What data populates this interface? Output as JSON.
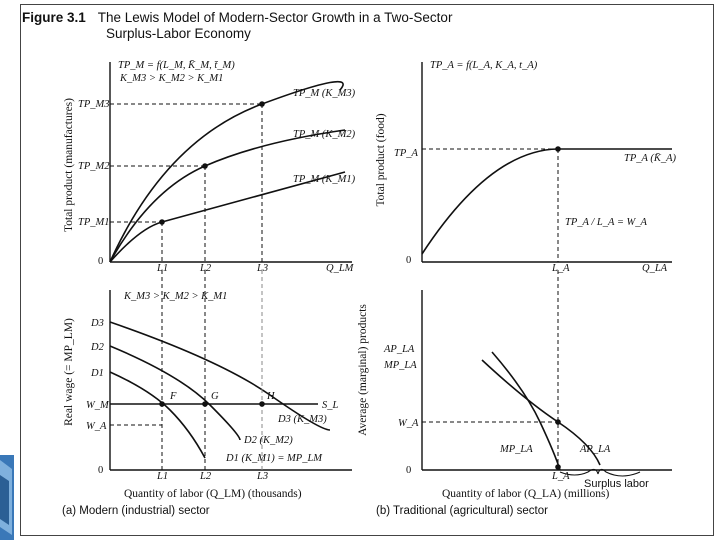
{
  "figure": {
    "number": "Figure 3.1",
    "title_line1": "The Lewis Model of Modern-Sector Growth in a Two-Sector",
    "title_line2": "Surplus-Labor Economy"
  },
  "panel_a_top": {
    "function": "TP_M = f(L_M, K̄_M, t̄_M)",
    "capital_order": "K_M3 > K_M2 > K_M1",
    "y_axis_label": "Total product (manufactures)",
    "y_ticks": [
      "TP_M3",
      "TP_M2",
      "TP_M1"
    ],
    "curves": [
      "TP_M (K_M3)",
      "TP_M (K_M2)",
      "TP_M (K_M1)"
    ],
    "x_ticks": [
      "L1",
      "L2",
      "L3"
    ],
    "x_label": "Q_LM",
    "origin": "0"
  },
  "panel_a_bottom": {
    "capital_order": "K_M3 > K_M2 > K_M1",
    "y_axis_label": "Real wage (= MP_LM)",
    "demand_ticks": [
      "D3",
      "D2",
      "D1"
    ],
    "wage_ticks": [
      "W_M",
      "W_A"
    ],
    "points": [
      "F",
      "G",
      "H"
    ],
    "supply_label": "S_L",
    "curves": [
      "D3 (K_M3)",
      "D2 (K_M2)",
      "D1 (K_M1) = MP_LM"
    ],
    "x_ticks": [
      "L1",
      "L2",
      "L3"
    ],
    "origin": "0",
    "x_axis_label": "Quantity of labor (Q_LM) (thousands)",
    "caption": "(a) Modern (industrial) sector"
  },
  "panel_b_top": {
    "function": "TP_A = f(L_A, K_A, t_A)",
    "y_axis_label": "Total product (food)",
    "y_tick": "TP_A",
    "curve": "TP_A (K̄_A)",
    "ratio": "TP_A / L_A = W_A",
    "x_tick": "L_A",
    "x_label": "Q_LA",
    "origin": "0"
  },
  "panel_b_bottom": {
    "y_axis_label": "Average (marginal) products",
    "y_ticks": [
      "AP_LA",
      "MP_LA",
      "W_A"
    ],
    "curves": [
      "MP_LA",
      "AP_LA"
    ],
    "x_tick": "L_A",
    "origin": "0",
    "surplus_label": "Surplus labor",
    "x_axis_label": "Quantity of labor (Q_LA) (millions)",
    "caption": "(b) Traditional (agricultural) sector"
  }
}
